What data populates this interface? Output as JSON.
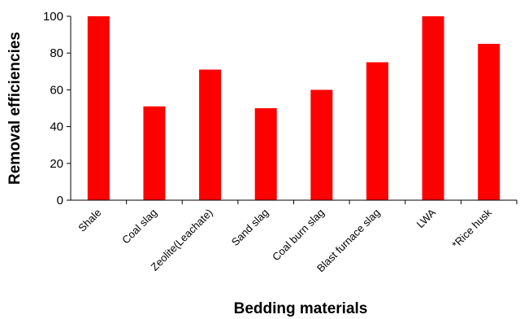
{
  "chart_data": {
    "type": "bar",
    "categories": [
      "Shale",
      "Coal slag",
      "Zeolite(Leachate)",
      "Sand slag",
      "Coal burn slag",
      "Blast furnace slag",
      "LWA",
      "*Rice husk"
    ],
    "values": [
      100,
      51,
      71,
      50,
      60,
      75,
      100,
      85
    ],
    "xlabel": "Bedding materials",
    "ylabel": "Removal efficiencies",
    "ylim": [
      0,
      100
    ],
    "yticks": [
      0,
      20,
      40,
      60,
      80,
      100
    ],
    "grid": false,
    "legend": "none",
    "bar_color": "#ff0000"
  }
}
